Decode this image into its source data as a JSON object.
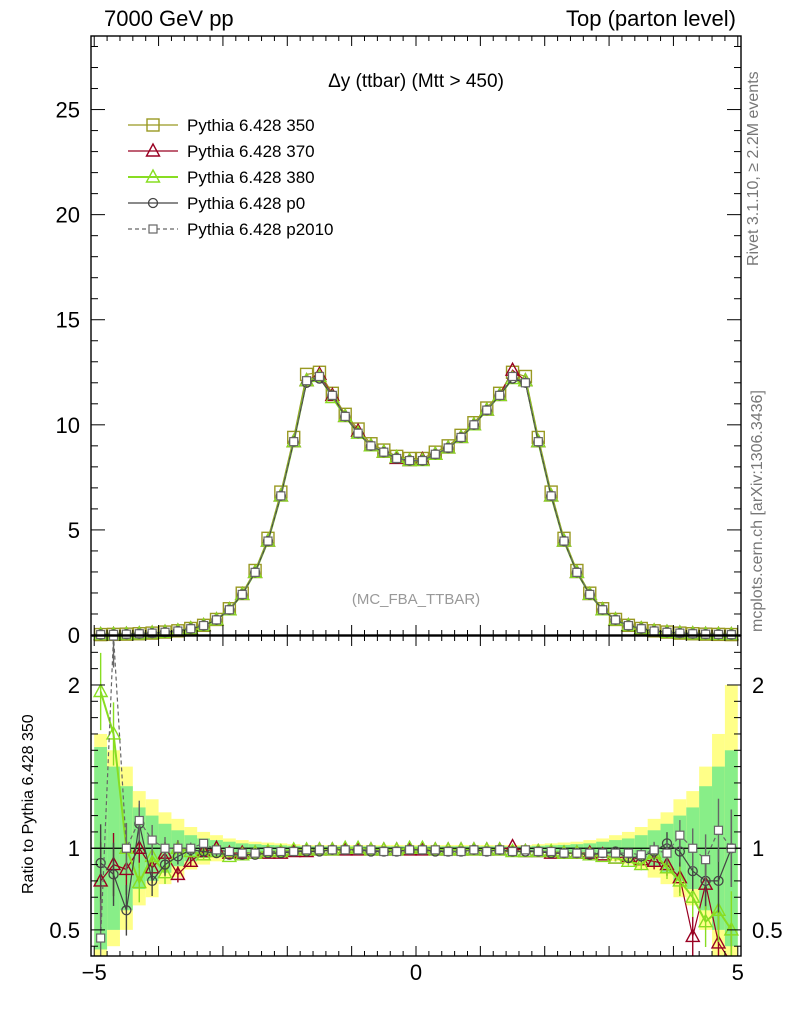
{
  "header": {
    "left": "7000 GeV pp",
    "right": "Top (parton level)"
  },
  "side_labels": {
    "rivet": "Rivet 3.1.10, ≥ 2.2M events",
    "mcplots": "mcplots.cern.ch [arXiv:1306.3436]"
  },
  "colors": {
    "350": "#999922",
    "370": "#990022",
    "380": "#88dd22",
    "p0": "#444444",
    "p2010": "#666666",
    "band_yellow": "#ffff88",
    "band_green": "#88ee88"
  },
  "chart_data": [
    {
      "type": "line",
      "title": "Δy (ttbar) (Mtt > 450)",
      "watermark": "(MC_FBA_TTBAR)",
      "xlim": [
        -5.05,
        5.05
      ],
      "ylim": [
        0,
        28.5
      ],
      "yticks": [
        0,
        5,
        10,
        15,
        20,
        25
      ],
      "xticks": [
        -5,
        0,
        5
      ],
      "grid": false,
      "legend_position": "top-left",
      "x": [
        -4.9,
        -4.7,
        -4.5,
        -4.3,
        -4.1,
        -3.9,
        -3.7,
        -3.5,
        -3.3,
        -3.1,
        -2.9,
        -2.7,
        -2.5,
        -2.3,
        -2.1,
        -1.9,
        -1.7,
        -1.5,
        -1.3,
        -1.1,
        -0.9,
        -0.7,
        -0.5,
        -0.3,
        -0.1,
        0.1,
        0.3,
        0.5,
        0.7,
        0.9,
        1.1,
        1.3,
        1.5,
        1.7,
        1.9,
        2.1,
        2.3,
        2.5,
        2.7,
        2.9,
        3.1,
        3.3,
        3.5,
        3.7,
        3.9,
        4.1,
        4.3,
        4.5,
        4.7,
        4.9
      ],
      "series": [
        {
          "name": "Pythia 6.428 350",
          "marker": "square-open",
          "style": "solid",
          "color_key": "350",
          "values": [
            0.02,
            0.03,
            0.04,
            0.06,
            0.09,
            0.14,
            0.2,
            0.31,
            0.46,
            0.74,
            1.25,
            1.99,
            3.07,
            4.6,
            6.8,
            9.4,
            12.4,
            12.5,
            11.5,
            10.5,
            9.8,
            9.1,
            8.8,
            8.5,
            8.4,
            8.4,
            8.7,
            9.0,
            9.5,
            10.1,
            10.8,
            11.5,
            12.5,
            12.3,
            9.4,
            6.8,
            4.6,
            3.07,
            1.99,
            1.25,
            0.74,
            0.46,
            0.31,
            0.2,
            0.14,
            0.09,
            0.06,
            0.04,
            0.03,
            0.02
          ]
        },
        {
          "name": "Pythia 6.428 370",
          "marker": "triangle-open",
          "style": "solid",
          "color_key": "370",
          "values": [
            0.02,
            0.03,
            0.04,
            0.06,
            0.09,
            0.13,
            0.19,
            0.3,
            0.45,
            0.72,
            1.2,
            1.93,
            2.98,
            4.47,
            6.62,
            9.2,
            12.1,
            12.4,
            11.4,
            10.4,
            9.7,
            9.0,
            8.7,
            8.4,
            8.3,
            8.35,
            8.6,
            8.9,
            9.4,
            10.0,
            10.7,
            11.4,
            12.6,
            12.1,
            9.2,
            6.62,
            4.47,
            2.98,
            1.93,
            1.2,
            0.72,
            0.45,
            0.3,
            0.19,
            0.13,
            0.09,
            0.06,
            0.04,
            0.03,
            0.02
          ]
        },
        {
          "name": "Pythia 6.428 380",
          "marker": "triangle-open",
          "style": "solid",
          "color_key": "380",
          "values": [
            0.02,
            0.03,
            0.04,
            0.06,
            0.09,
            0.13,
            0.19,
            0.3,
            0.45,
            0.72,
            1.2,
            1.93,
            2.98,
            4.47,
            6.62,
            9.2,
            12.1,
            12.3,
            11.3,
            10.4,
            9.6,
            9.0,
            8.7,
            8.45,
            8.3,
            8.3,
            8.6,
            8.9,
            9.4,
            10.0,
            10.7,
            11.4,
            12.2,
            12.1,
            9.2,
            6.62,
            4.47,
            2.98,
            1.93,
            1.2,
            0.72,
            0.45,
            0.3,
            0.19,
            0.13,
            0.09,
            0.06,
            0.04,
            0.03,
            0.02
          ]
        },
        {
          "name": "Pythia 6.428 p0",
          "marker": "circle-open",
          "style": "solid",
          "color_key": "p0",
          "values": [
            0.02,
            0.03,
            0.04,
            0.06,
            0.09,
            0.13,
            0.19,
            0.3,
            0.45,
            0.72,
            1.2,
            1.93,
            2.98,
            4.47,
            6.62,
            9.2,
            12.0,
            12.2,
            11.4,
            10.4,
            9.6,
            9.0,
            8.7,
            8.4,
            8.3,
            8.3,
            8.6,
            8.9,
            9.4,
            10.0,
            10.7,
            11.4,
            12.2,
            12.0,
            9.2,
            6.62,
            4.47,
            2.98,
            1.93,
            1.2,
            0.72,
            0.45,
            0.3,
            0.19,
            0.13,
            0.09,
            0.06,
            0.04,
            0.03,
            0.02
          ]
        },
        {
          "name": "Pythia 6.428 p2010",
          "marker": "square-small",
          "style": "dashed",
          "color_key": "p2010",
          "values": [
            0.02,
            0.03,
            0.04,
            0.06,
            0.09,
            0.13,
            0.19,
            0.3,
            0.45,
            0.72,
            1.2,
            1.93,
            2.98,
            4.47,
            6.62,
            9.2,
            12.1,
            12.3,
            11.4,
            10.4,
            9.6,
            9.0,
            8.7,
            8.4,
            8.3,
            8.3,
            8.6,
            8.9,
            9.4,
            10.0,
            10.7,
            11.4,
            12.3,
            12.0,
            9.2,
            6.62,
            4.47,
            2.98,
            1.93,
            1.2,
            0.72,
            0.45,
            0.3,
            0.19,
            0.13,
            0.09,
            0.06,
            0.04,
            0.03,
            0.02
          ]
        }
      ]
    },
    {
      "type": "line",
      "ylabel": "Ratio to Pythia 6.428 350",
      "xlim": [
        -5.05,
        5.05
      ],
      "ylim": [
        0.34,
        2.3
      ],
      "yticks": [
        0.5,
        1,
        2
      ],
      "yticklabels": [
        "0.5",
        "1",
        "2"
      ],
      "xticks": [
        -5,
        0,
        5
      ],
      "xticklabels": [
        "−5",
        "0",
        "5"
      ],
      "grid": false,
      "reference_line": 1,
      "x": [
        -4.9,
        -4.7,
        -4.5,
        -4.3,
        -4.1,
        -3.9,
        -3.7,
        -3.5,
        -3.3,
        -3.1,
        -2.9,
        -2.7,
        -2.5,
        -2.3,
        -2.1,
        -1.9,
        -1.7,
        -1.5,
        -1.3,
        -1.1,
        -0.9,
        -0.7,
        -0.5,
        -0.3,
        -0.1,
        0.1,
        0.3,
        0.5,
        0.7,
        0.9,
        1.1,
        1.3,
        1.5,
        1.7,
        1.9,
        2.1,
        2.3,
        2.5,
        2.7,
        2.9,
        3.1,
        3.3,
        3.5,
        3.7,
        3.9,
        4.1,
        4.3,
        4.5,
        4.7,
        4.9
      ],
      "bands": {
        "yellow_halfwidth": [
          0.7,
          0.6,
          0.5,
          0.35,
          0.3,
          0.22,
          0.18,
          0.13,
          0.1,
          0.08,
          0.06,
          0.05,
          0.04,
          0.035,
          0.03,
          0.025,
          0.02,
          0.02,
          0.02,
          0.02,
          0.02,
          0.02,
          0.02,
          0.02,
          0.02,
          0.02,
          0.02,
          0.02,
          0.02,
          0.02,
          0.02,
          0.02,
          0.02,
          0.02,
          0.025,
          0.03,
          0.035,
          0.04,
          0.05,
          0.06,
          0.08,
          0.1,
          0.13,
          0.18,
          0.22,
          0.3,
          0.35,
          0.5,
          0.7,
          1.0
        ],
        "green_halfwidth": [
          0.62,
          0.5,
          0.38,
          0.25,
          0.2,
          0.15,
          0.11,
          0.08,
          0.06,
          0.05,
          0.04,
          0.03,
          0.025,
          0.02,
          0.018,
          0.015,
          0.012,
          0.012,
          0.012,
          0.012,
          0.012,
          0.012,
          0.012,
          0.012,
          0.012,
          0.012,
          0.012,
          0.012,
          0.012,
          0.012,
          0.012,
          0.012,
          0.012,
          0.012,
          0.015,
          0.018,
          0.02,
          0.025,
          0.03,
          0.04,
          0.05,
          0.06,
          0.08,
          0.11,
          0.15,
          0.2,
          0.25,
          0.38,
          0.5,
          0.6
        ]
      },
      "series": [
        {
          "name": "Pythia 6.428 370",
          "color_key": "370",
          "marker": "triangle-open",
          "values": [
            0.8,
            0.9,
            0.87,
            1.0,
            0.88,
            0.97,
            0.84,
            0.92,
            0.98,
            1.0,
            0.97,
            0.97,
            0.97,
            0.97,
            0.97,
            0.98,
            0.98,
            0.99,
            0.99,
            0.99,
            0.99,
            0.99,
            0.99,
            0.99,
            0.99,
            0.99,
            0.99,
            0.99,
            0.99,
            0.99,
            0.99,
            0.99,
            1.01,
            0.98,
            0.98,
            0.97,
            0.97,
            0.97,
            0.97,
            0.96,
            0.94,
            0.95,
            0.93,
            0.92,
            0.9,
            0.82,
            0.46,
            0.78,
            0.42,
            0.3
          ]
        },
        {
          "name": "Pythia 6.428 380",
          "color_key": "380",
          "marker": "triangle-open",
          "values": [
            1.96,
            1.7,
            1.0,
            0.79,
            0.95,
            0.85,
            1.0,
            0.98,
            0.96,
            0.98,
            0.95,
            0.96,
            0.97,
            0.98,
            0.98,
            0.99,
            0.99,
            0.99,
            0.99,
            1.0,
            1.0,
            0.99,
            0.99,
            0.99,
            1.0,
            1.0,
            0.99,
            0.99,
            0.99,
            0.99,
            0.99,
            0.99,
            0.98,
            0.98,
            0.98,
            0.98,
            0.97,
            0.97,
            0.96,
            0.95,
            0.94,
            0.92,
            0.9,
            0.97,
            0.88,
            0.8,
            0.7,
            0.55,
            0.62,
            0.5
          ]
        },
        {
          "name": "Pythia 6.428 p0",
          "color_key": "p0",
          "marker": "circle-open",
          "values": [
            0.91,
            0.84,
            0.62,
            1.15,
            0.8,
            0.9,
            0.95,
            0.99,
            0.98,
            0.97,
            0.96,
            0.96,
            0.96,
            0.97,
            0.97,
            0.98,
            0.98,
            0.98,
            0.99,
            0.99,
            0.99,
            0.98,
            0.98,
            0.98,
            0.99,
            0.99,
            0.98,
            0.98,
            0.98,
            0.99,
            0.98,
            0.99,
            0.98,
            0.98,
            0.98,
            0.97,
            0.97,
            0.97,
            0.96,
            0.97,
            0.98,
            0.94,
            0.95,
            0.98,
            1.03,
            0.98,
            0.86,
            0.8,
            0.8,
            1.0
          ]
        },
        {
          "name": "Pythia 6.428 p2010",
          "color_key": "p2010",
          "marker": "square-small",
          "style": "dashed",
          "values": [
            0.45,
            2.3,
            1.0,
            1.17,
            1.05,
            1.0,
            1.0,
            1.0,
            1.03,
            0.99,
            0.98,
            0.97,
            0.97,
            0.98,
            0.98,
            0.98,
            0.99,
            0.99,
            0.99,
            0.99,
            0.99,
            0.99,
            0.98,
            0.98,
            0.99,
            0.99,
            0.99,
            0.98,
            0.98,
            0.99,
            0.98,
            0.99,
            0.98,
            0.99,
            0.98,
            0.98,
            0.97,
            0.97,
            0.97,
            0.97,
            0.97,
            0.97,
            0.96,
            0.99,
            0.97,
            1.08,
            1.0,
            0.93,
            1.11,
            1.0
          ]
        }
      ]
    }
  ]
}
